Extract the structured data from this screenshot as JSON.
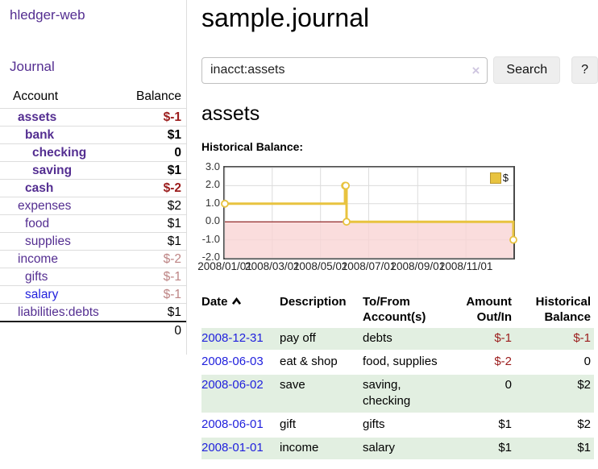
{
  "app": {
    "title": "hledger-web"
  },
  "nav": {
    "journal": "Journal"
  },
  "sidebar": {
    "headers": {
      "account": "Account",
      "balance": "Balance"
    },
    "rows": [
      {
        "account": "assets",
        "balance": "$-1"
      },
      {
        "account": "bank",
        "balance": "$1"
      },
      {
        "account": "checking",
        "balance": "0"
      },
      {
        "account": "saving",
        "balance": "$1"
      },
      {
        "account": "cash",
        "balance": "$-2"
      },
      {
        "account": "expenses",
        "balance": "$2"
      },
      {
        "account": "food",
        "balance": "$1"
      },
      {
        "account": "supplies",
        "balance": "$1"
      },
      {
        "account": "income",
        "balance": "$-2"
      },
      {
        "account": "gifts",
        "balance": "$-1"
      },
      {
        "account": "salary",
        "balance": "$-1"
      },
      {
        "account": "liabilities:debts",
        "balance": "$1"
      }
    ],
    "total": "0"
  },
  "main": {
    "title": "sample.journal",
    "search": {
      "value": "inacct:assets",
      "clear": "×",
      "search_button": "Search",
      "help_button": "?"
    },
    "heading": "assets",
    "chart_title": "Historical Balance:"
  },
  "register": {
    "headers": {
      "date": "Date",
      "description": "Description",
      "accounts": "To/From Account(s)",
      "amount": "Amount Out/In",
      "balance": "Historical Balance"
    },
    "rows": [
      {
        "date": "2008-12-31",
        "description": "pay off",
        "accounts": "debts",
        "amount": "$-1",
        "balance": "$-1"
      },
      {
        "date": "2008-06-03",
        "description": "eat & shop",
        "accounts": "food, supplies",
        "amount": "$-2",
        "balance": "0"
      },
      {
        "date": "2008-06-02",
        "description": "save",
        "accounts": "saving, checking",
        "amount": "0",
        "balance": "$2"
      },
      {
        "date": "2008-06-01",
        "description": "gift",
        "accounts": "gifts",
        "amount": "$1",
        "balance": "$2"
      },
      {
        "date": "2008-01-01",
        "description": "income",
        "accounts": "salary",
        "amount": "$1",
        "balance": "$1"
      }
    ]
  },
  "chart_data": {
    "type": "line",
    "title": "Historical Balance:",
    "series": [
      {
        "name": "$",
        "color": "#e8c33f",
        "points": [
          {
            "date": "2008-01-01",
            "value": 1
          },
          {
            "date": "2008-06-01",
            "value": 2
          },
          {
            "date": "2008-06-02",
            "value": 2
          },
          {
            "date": "2008-06-03",
            "value": 0
          },
          {
            "date": "2008-12-31",
            "value": -1
          }
        ]
      }
    ],
    "x_range": [
      "2008-01-01",
      "2008-12-31"
    ],
    "ylim": [
      -2,
      3
    ],
    "yticks": [
      3,
      2,
      1,
      0,
      -1,
      -2
    ],
    "ytick_labels": [
      "3.0",
      "2.0",
      "1.0",
      "0.0",
      "-1.0",
      "-2.0"
    ],
    "xticks": [
      "2008-01-01",
      "2008-03-01",
      "2008-05-01",
      "2008-07-01",
      "2008-09-01",
      "2008-11-01"
    ],
    "xtick_labels": [
      "2008/01/01",
      "2008/03/01",
      "2008/05/01",
      "2008/07/01",
      "2008/09/01",
      "2008/11/01"
    ],
    "grid": true,
    "legend_position": "top-right",
    "negative_region_color": "#f9d4d4",
    "zero_line_color": "#7a0000"
  },
  "colors": {
    "accent_purple": "#542e91",
    "link_blue": "#2121dd",
    "negative_dark": "#9b1c1c",
    "negative_muted": "#bd8484",
    "row_stripe_green": "#e2efe1",
    "chart_line_gold": "#e8c33f"
  }
}
